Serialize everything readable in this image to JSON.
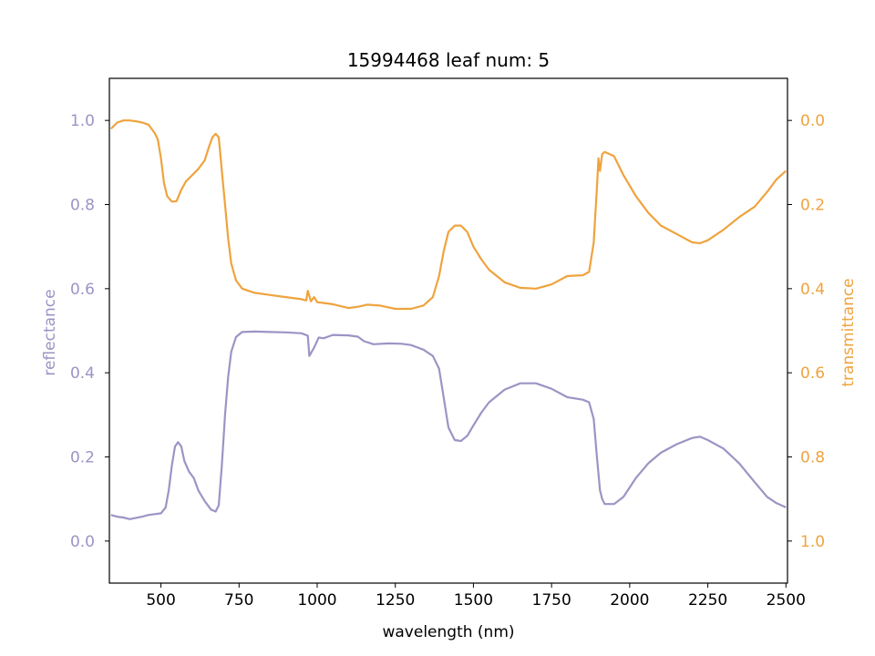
{
  "chart_data": {
    "type": "line",
    "title": "15994468 leaf num: 5",
    "xlabel": "wavelength (nm)",
    "ylabel_left": "reflectance",
    "ylabel_right": "transmittance",
    "xlim": [
      335,
      2505
    ],
    "ylim_left": [
      -0.1,
      1.1
    ],
    "ylim_right_inverted": [
      1.1,
      -0.1
    ],
    "x_ticks": [
      500,
      750,
      1000,
      1250,
      1500,
      1750,
      2000,
      2250,
      2500
    ],
    "y_ticks_left": [
      "0.0",
      "0.2",
      "0.4",
      "0.6",
      "0.8",
      "1.0"
    ],
    "y_ticks_right": [
      "0.0",
      "0.2",
      "0.4",
      "0.6",
      "0.8",
      "1.0"
    ],
    "grid": false,
    "colors": {
      "reflectance": "#9a95c5",
      "transmittance": "#efa33e",
      "axis": "#000000"
    },
    "series": [
      {
        "axis": "left",
        "color": "#9a95c5",
        "points": [
          [
            340,
            0.062
          ],
          [
            360,
            0.058
          ],
          [
            380,
            0.056
          ],
          [
            400,
            0.052
          ],
          [
            420,
            0.055
          ],
          [
            440,
            0.058
          ],
          [
            460,
            0.062
          ],
          [
            480,
            0.064
          ],
          [
            500,
            0.066
          ],
          [
            515,
            0.08
          ],
          [
            525,
            0.12
          ],
          [
            535,
            0.18
          ],
          [
            545,
            0.225
          ],
          [
            555,
            0.235
          ],
          [
            565,
            0.225
          ],
          [
            575,
            0.19
          ],
          [
            590,
            0.165
          ],
          [
            605,
            0.15
          ],
          [
            620,
            0.12
          ],
          [
            640,
            0.095
          ],
          [
            660,
            0.075
          ],
          [
            675,
            0.07
          ],
          [
            685,
            0.085
          ],
          [
            695,
            0.18
          ],
          [
            705,
            0.3
          ],
          [
            715,
            0.39
          ],
          [
            725,
            0.45
          ],
          [
            740,
            0.485
          ],
          [
            760,
            0.497
          ],
          [
            800,
            0.498
          ],
          [
            850,
            0.497
          ],
          [
            900,
            0.496
          ],
          [
            950,
            0.494
          ],
          [
            970,
            0.488
          ],
          [
            975,
            0.44
          ],
          [
            990,
            0.46
          ],
          [
            1005,
            0.484
          ],
          [
            1020,
            0.482
          ],
          [
            1050,
            0.49
          ],
          [
            1100,
            0.489
          ],
          [
            1130,
            0.486
          ],
          [
            1150,
            0.475
          ],
          [
            1180,
            0.468
          ],
          [
            1230,
            0.47
          ],
          [
            1270,
            0.469
          ],
          [
            1300,
            0.466
          ],
          [
            1340,
            0.455
          ],
          [
            1370,
            0.44
          ],
          [
            1390,
            0.41
          ],
          [
            1405,
            0.34
          ],
          [
            1420,
            0.27
          ],
          [
            1440,
            0.24
          ],
          [
            1460,
            0.238
          ],
          [
            1480,
            0.25
          ],
          [
            1500,
            0.275
          ],
          [
            1525,
            0.305
          ],
          [
            1550,
            0.33
          ],
          [
            1600,
            0.36
          ],
          [
            1650,
            0.375
          ],
          [
            1700,
            0.375
          ],
          [
            1750,
            0.362
          ],
          [
            1800,
            0.342
          ],
          [
            1850,
            0.336
          ],
          [
            1870,
            0.33
          ],
          [
            1885,
            0.29
          ],
          [
            1895,
            0.2
          ],
          [
            1905,
            0.12
          ],
          [
            1912,
            0.1
          ],
          [
            1920,
            0.088
          ],
          [
            1950,
            0.088
          ],
          [
            1980,
            0.105
          ],
          [
            2020,
            0.15
          ],
          [
            2060,
            0.185
          ],
          [
            2100,
            0.21
          ],
          [
            2150,
            0.23
          ],
          [
            2200,
            0.245
          ],
          [
            2225,
            0.248
          ],
          [
            2250,
            0.24
          ],
          [
            2300,
            0.22
          ],
          [
            2350,
            0.185
          ],
          [
            2400,
            0.14
          ],
          [
            2440,
            0.105
          ],
          [
            2470,
            0.09
          ],
          [
            2500,
            0.08
          ]
        ]
      },
      {
        "axis": "right",
        "color": "#efa33e",
        "points": [
          [
            340,
            0.02
          ],
          [
            360,
            0.005
          ],
          [
            380,
            0.0
          ],
          [
            400,
            0.0
          ],
          [
            420,
            0.002
          ],
          [
            440,
            0.005
          ],
          [
            460,
            0.01
          ],
          [
            470,
            0.02
          ],
          [
            480,
            0.03
          ],
          [
            490,
            0.045
          ],
          [
            500,
            0.09
          ],
          [
            510,
            0.15
          ],
          [
            520,
            0.18
          ],
          [
            535,
            0.193
          ],
          [
            550,
            0.192
          ],
          [
            565,
            0.165
          ],
          [
            580,
            0.145
          ],
          [
            600,
            0.13
          ],
          [
            620,
            0.115
          ],
          [
            640,
            0.095
          ],
          [
            655,
            0.06
          ],
          [
            665,
            0.04
          ],
          [
            675,
            0.032
          ],
          [
            685,
            0.04
          ],
          [
            695,
            0.12
          ],
          [
            705,
            0.2
          ],
          [
            715,
            0.28
          ],
          [
            725,
            0.34
          ],
          [
            740,
            0.38
          ],
          [
            760,
            0.4
          ],
          [
            800,
            0.41
          ],
          [
            850,
            0.415
          ],
          [
            900,
            0.42
          ],
          [
            950,
            0.425
          ],
          [
            965,
            0.428
          ],
          [
            970,
            0.405
          ],
          [
            980,
            0.43
          ],
          [
            990,
            0.42
          ],
          [
            1000,
            0.432
          ],
          [
            1050,
            0.437
          ],
          [
            1100,
            0.446
          ],
          [
            1130,
            0.443
          ],
          [
            1160,
            0.438
          ],
          [
            1200,
            0.44
          ],
          [
            1250,
            0.448
          ],
          [
            1300,
            0.448
          ],
          [
            1340,
            0.44
          ],
          [
            1370,
            0.42
          ],
          [
            1390,
            0.37
          ],
          [
            1405,
            0.31
          ],
          [
            1420,
            0.265
          ],
          [
            1440,
            0.25
          ],
          [
            1460,
            0.25
          ],
          [
            1480,
            0.265
          ],
          [
            1500,
            0.3
          ],
          [
            1525,
            0.33
          ],
          [
            1550,
            0.355
          ],
          [
            1600,
            0.385
          ],
          [
            1650,
            0.398
          ],
          [
            1700,
            0.4
          ],
          [
            1750,
            0.39
          ],
          [
            1800,
            0.37
          ],
          [
            1850,
            0.368
          ],
          [
            1870,
            0.36
          ],
          [
            1885,
            0.29
          ],
          [
            1895,
            0.16
          ],
          [
            1900,
            0.09
          ],
          [
            1905,
            0.12
          ],
          [
            1912,
            0.08
          ],
          [
            1920,
            0.075
          ],
          [
            1950,
            0.085
          ],
          [
            1980,
            0.13
          ],
          [
            2020,
            0.18
          ],
          [
            2060,
            0.22
          ],
          [
            2100,
            0.25
          ],
          [
            2150,
            0.27
          ],
          [
            2200,
            0.29
          ],
          [
            2225,
            0.292
          ],
          [
            2250,
            0.285
          ],
          [
            2300,
            0.26
          ],
          [
            2350,
            0.23
          ],
          [
            2400,
            0.205
          ],
          [
            2440,
            0.17
          ],
          [
            2470,
            0.14
          ],
          [
            2500,
            0.12
          ]
        ]
      }
    ]
  }
}
